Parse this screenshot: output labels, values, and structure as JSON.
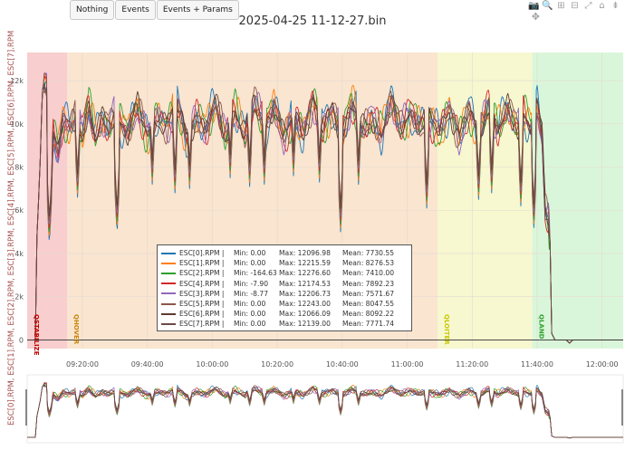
{
  "toolbar": {
    "buttons": [
      "Nothing",
      "Events",
      "Events + Params"
    ]
  },
  "modebar": [
    "camera-icon",
    "zoom-icon",
    "zoom-in-icon",
    "zoom-out-icon",
    "autoscale-icon",
    "home-icon",
    "spike-icon",
    "pan-icon"
  ],
  "chart_data": {
    "type": "line",
    "title": "2025-04-25 11-12-27.bin",
    "ylabel": "ESC[0].RPM, ESC[1].RPM, ESC[2].RPM, ESC[3].RPM, ESC[4].RPM, ESC[5].RPM, ESC[6].RPM, ESC[7].RPM",
    "ylim": [
      -400,
      13300
    ],
    "xlim": [
      "09:03:00",
      "12:06:30"
    ],
    "x_ticks": [
      "09:20:00",
      "09:40:00",
      "10:00:00",
      "10:20:00",
      "10:40:00",
      "11:00:00",
      "11:20:00",
      "11:40:00",
      "12:00:00"
    ],
    "y_ticks": [
      "0",
      "2k",
      "4k",
      "6k",
      "8k",
      "10k",
      "12k"
    ],
    "grid": true,
    "modes": [
      {
        "label": "QSTABILIZE",
        "start": "09:03:00",
        "end": "09:15:20",
        "color": "#f7c6c6",
        "label_color": "#c00000"
      },
      {
        "label": "QHOVER",
        "start": "09:15:20",
        "end": "11:09:20",
        "color": "#f8e1c8",
        "label_color": "#c8860a"
      },
      {
        "label": "QLOITER",
        "start": "11:09:20",
        "end": "11:38:30",
        "color": "#f6f6c8",
        "label_color": "#c8c800"
      },
      {
        "label": "QLAND",
        "start": "11:38:30",
        "end": "12:06:30",
        "color": "#d3f5d3",
        "label_color": "#2ea02e"
      }
    ],
    "series": [
      {
        "name": "ESC[0].RPM",
        "color": "#1f77b4",
        "min": "0.00",
        "max": "12096.98",
        "mean": "7730.55"
      },
      {
        "name": "ESC[1].RPM",
        "color": "#ff7f0e",
        "min": "0.00",
        "max": "12215.59",
        "mean": "8276.53"
      },
      {
        "name": "ESC[2].RPM",
        "color": "#2ca02c",
        "min": "-164.63",
        "max": "12276.60",
        "mean": "7410.00"
      },
      {
        "name": "ESC[4].RPM",
        "color": "#d62728",
        "min": "-7.90",
        "max": "12174.53",
        "mean": "7892.23"
      },
      {
        "name": "ESC[3].RPM",
        "color": "#9467bd",
        "min": "-8.77",
        "max": "12206.73",
        "mean": "7571.67"
      },
      {
        "name": "ESC[5].RPM",
        "color": "#8c564b",
        "min": "0.00",
        "max": "12243.00",
        "mean": "8047.55"
      },
      {
        "name": "ESC[6].RPM",
        "color": "#5b3a2e",
        "min": "0.00",
        "max": "12066.09",
        "mean": "8092.22"
      },
      {
        "name": "ESC[7].RPM",
        "color": "#6b4b45",
        "min": "0.00",
        "max": "12139.00",
        "mean": "7771.74"
      }
    ],
    "profile": [
      [
        "09:03:00",
        0
      ],
      [
        "09:05:30",
        0
      ],
      [
        "09:06:00",
        4800
      ],
      [
        "09:07:00",
        8200
      ],
      [
        "09:07:40",
        11500
      ],
      [
        "09:08:20",
        12100
      ],
      [
        "09:09:30",
        11800
      ],
      [
        "09:10:10",
        6200
      ],
      [
        "09:11:00",
        9500
      ],
      [
        "09:12:30",
        8700
      ],
      [
        "09:14:00",
        10100
      ],
      [
        "09:16:00",
        9800
      ],
      [
        "09:18:00",
        10400
      ],
      [
        "09:20:00",
        9600
      ],
      [
        "09:22:00",
        10900
      ],
      [
        "09:24:00",
        9300
      ],
      [
        "09:26:00",
        10100
      ],
      [
        "09:28:00",
        9900
      ],
      [
        "09:30:00",
        10500
      ],
      [
        "09:34:00",
        9600
      ],
      [
        "09:37:00",
        10800
      ],
      [
        "09:40:00",
        9500
      ],
      [
        "09:43:00",
        10400
      ],
      [
        "09:46:00",
        9800
      ],
      [
        "09:49:00",
        11000
      ],
      [
        "09:52:00",
        9400
      ],
      [
        "09:55:00",
        10300
      ],
      [
        "09:58:00",
        9700
      ],
      [
        "10:01:00",
        10900
      ],
      [
        "10:04:00",
        9500
      ],
      [
        "10:07:00",
        10600
      ],
      [
        "10:10:00",
        9400
      ],
      [
        "10:13:00",
        11100
      ],
      [
        "10:16:00",
        9900
      ],
      [
        "10:19:00",
        10800
      ],
      [
        "10:22:00",
        9300
      ],
      [
        "10:25:00",
        10500
      ],
      [
        "10:28:00",
        9600
      ],
      [
        "10:31:00",
        11000
      ],
      [
        "10:34:00",
        9800
      ],
      [
        "10:37:00",
        10700
      ],
      [
        "10:40:00",
        9500
      ],
      [
        "10:43:00",
        10900
      ],
      [
        "10:46:00",
        9700
      ],
      [
        "10:49:00",
        10300
      ],
      [
        "10:52:00",
        9500
      ],
      [
        "10:55:00",
        11000
      ],
      [
        "10:58:00",
        9800
      ],
      [
        "11:01:00",
        10600
      ],
      [
        "11:04:00",
        9900
      ],
      [
        "11:07:00",
        10200
      ],
      [
        "11:10:00",
        9600
      ],
      [
        "11:13:00",
        10800
      ],
      [
        "11:16:00",
        9300
      ],
      [
        "11:19:00",
        10600
      ],
      [
        "11:22:00",
        9500
      ],
      [
        "11:25:00",
        10900
      ],
      [
        "11:28:00",
        9700
      ],
      [
        "11:31:00",
        10700
      ],
      [
        "11:34:00",
        9900
      ],
      [
        "11:36:00",
        10500
      ],
      [
        "11:38:00",
        9800
      ],
      [
        "11:40:00",
        10800
      ],
      [
        "11:41:30",
        9400
      ],
      [
        "11:42:30",
        6000
      ],
      [
        "11:43:30",
        5600
      ],
      [
        "11:44:00",
        4500
      ],
      [
        "11:44:30",
        300
      ],
      [
        "11:45:30",
        0
      ],
      [
        "11:49:00",
        0
      ],
      [
        "11:50:00",
        -150
      ],
      [
        "11:51:00",
        0
      ],
      [
        "12:06:30",
        0
      ]
    ],
    "dips": [
      [
        "09:09:50",
        4400
      ],
      [
        "09:18:30",
        6600
      ],
      [
        "09:30:40",
        4900
      ],
      [
        "09:41:30",
        7200
      ],
      [
        "09:48:30",
        6800
      ],
      [
        "09:53:00",
        7000
      ],
      [
        "10:05:30",
        7500
      ],
      [
        "10:11:30",
        7100
      ],
      [
        "10:16:00",
        7200
      ],
      [
        "10:25:00",
        7600
      ],
      [
        "10:33:00",
        7300
      ],
      [
        "10:39:30",
        5000
      ],
      [
        "10:45:00",
        7200
      ],
      [
        "11:06:00",
        6100
      ],
      [
        "11:22:00",
        6500
      ],
      [
        "11:26:00",
        6800
      ],
      [
        "11:35:00",
        6200
      ],
      [
        "11:39:00",
        5200
      ]
    ]
  }
}
